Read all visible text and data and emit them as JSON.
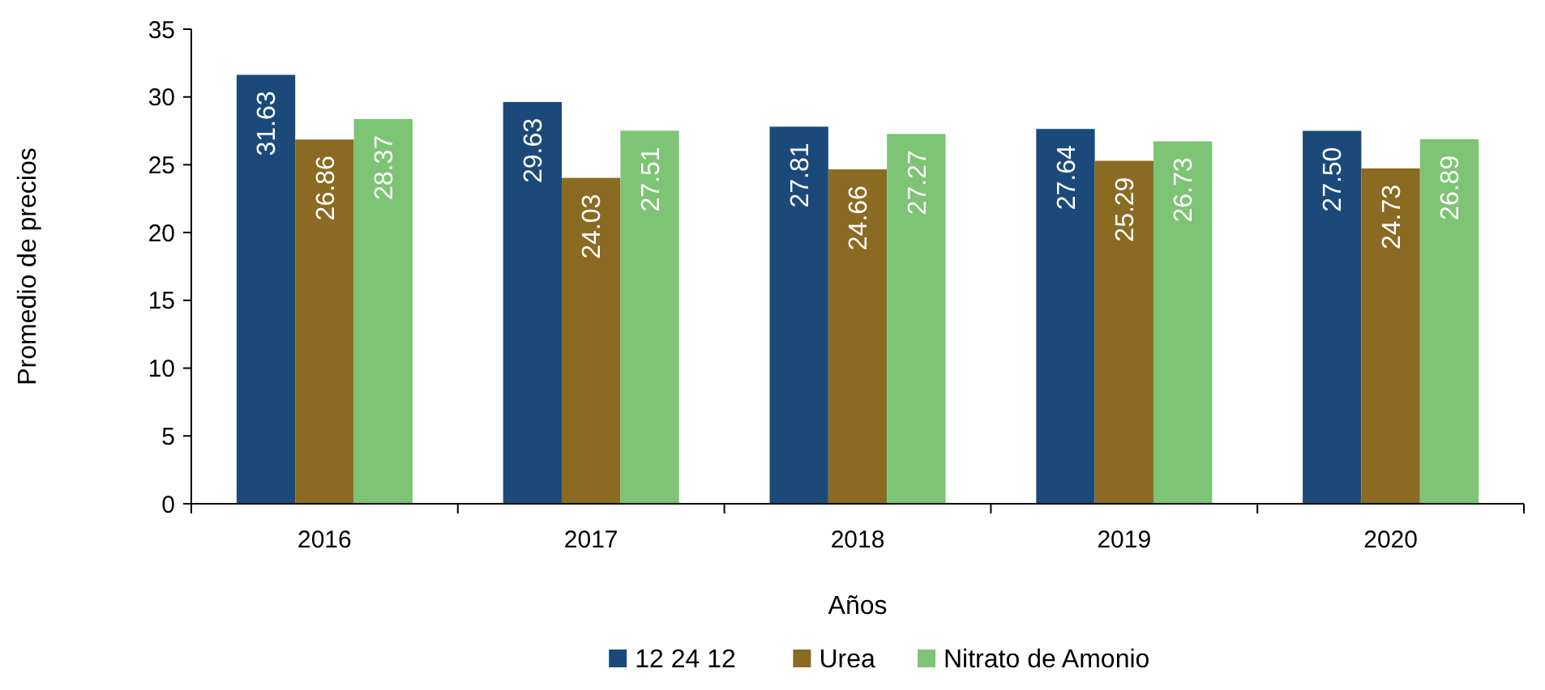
{
  "chart_data": {
    "type": "bar",
    "xlabel": "Años",
    "ylabel": "Promedio de precios",
    "categories": [
      "2016",
      "2017",
      "2018",
      "2019",
      "2020"
    ],
    "series": [
      {
        "name": "12 24 12",
        "color": "#1b4a7a",
        "values": [
          31.63,
          29.63,
          27.81,
          27.64,
          27.5
        ],
        "value_labels": [
          "31.63",
          "29.63",
          "27.81",
          "27.64",
          "27.50"
        ]
      },
      {
        "name": "Urea",
        "color": "#8b6a22",
        "values": [
          26.86,
          24.03,
          24.66,
          25.29,
          24.73
        ],
        "value_labels": [
          "26.86",
          "24.03",
          "24.66",
          "25.29",
          "24.73"
        ]
      },
      {
        "name": "Nitrato de Amonio",
        "color": "#7dc474",
        "values": [
          28.37,
          27.51,
          27.27,
          26.73,
          26.89
        ],
        "value_labels": [
          "28.37",
          "27.51",
          "27.27",
          "26.73",
          "26.89"
        ]
      }
    ],
    "ylim": [
      0,
      35
    ],
    "yticks": [
      0,
      5,
      10,
      15,
      20,
      25,
      30,
      35
    ],
    "grid": false,
    "legend": "bottom"
  }
}
